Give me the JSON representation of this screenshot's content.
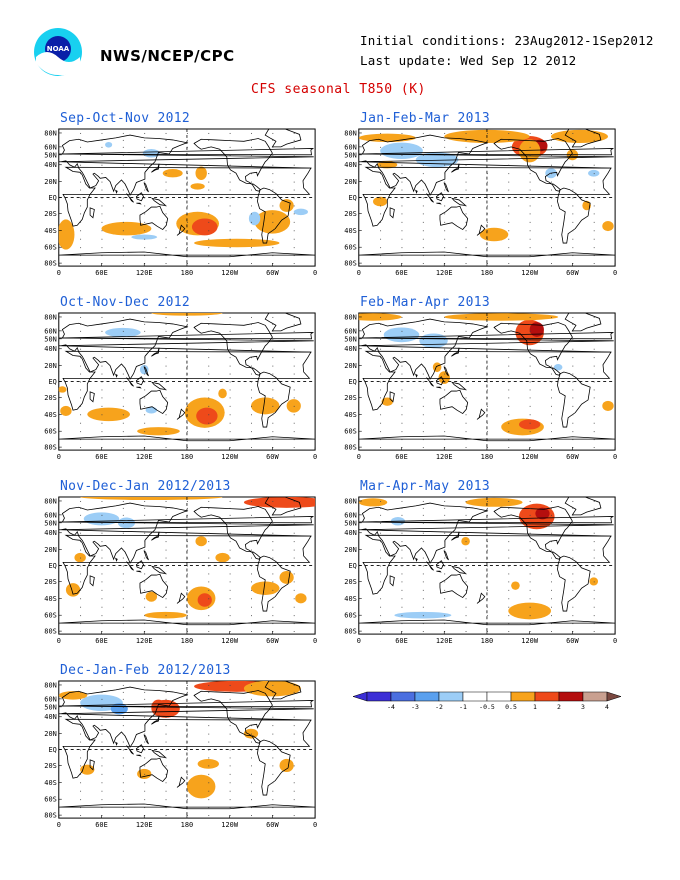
{
  "header": {
    "org": "NWS/NCEP/CPC",
    "initial_conditions": "Initial conditions: 23Aug2012-1Sep2012",
    "last_update": "Last update: Wed Sep 12 2012",
    "title": "CFS seasonal T850 (K)",
    "logo_text": "NOAA"
  },
  "axes": {
    "lat_labels": [
      "80N",
      "60N",
      "50N",
      "40N",
      "20N",
      "EQ",
      "20S",
      "40S",
      "60S",
      "80S"
    ],
    "lon_labels": [
      "0",
      "60E",
      "120E",
      "180",
      "120W",
      "60W",
      "0"
    ]
  },
  "panels": [
    {
      "title": "Sep-Oct-Nov 2012"
    },
    {
      "title": "Jan-Feb-Mar 2013"
    },
    {
      "title": "Oct-Nov-Dec 2012"
    },
    {
      "title": "Feb-Mar-Apr 2013"
    },
    {
      "title": "Nov-Dec-Jan 2012/2013"
    },
    {
      "title": "Mar-Apr-May 2013"
    },
    {
      "title": "Dec-Jan-Feb 2012/2013"
    }
  ],
  "legend": {
    "labels": [
      "-4",
      "-3",
      "-2",
      "-1",
      "-0.5",
      "0.5",
      "1",
      "2",
      "3",
      "4"
    ],
    "colors": [
      "#3c2fd6",
      "#4b6fe0",
      "#5aa0ee",
      "#9ccdf6",
      "#ffffff",
      "#f7a31c",
      "#ee4a1a",
      "#b40e0e",
      "#c9a090",
      "#7a4840"
    ]
  },
  "colors": {
    "title_red": "#d40000",
    "panel_title_blue": "#1f5fd6",
    "warm_orange": "#f7a31c",
    "warm_red": "#ee4a1a",
    "cool_blue": "#9ccdf6"
  }
}
